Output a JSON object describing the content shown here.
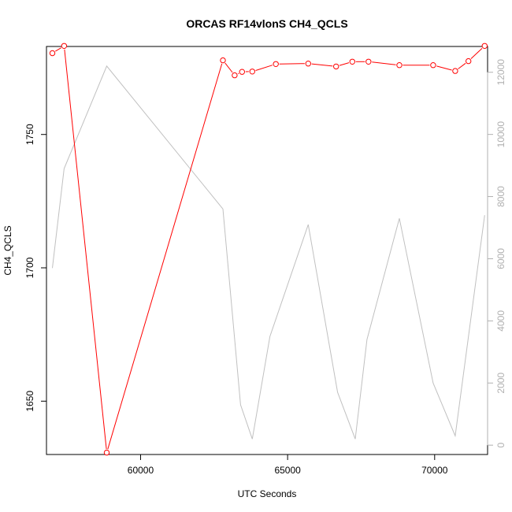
{
  "chart_data": {
    "type": "line",
    "title": "ORCAS RF14vlonS CH4_QCLS",
    "xlabel": "UTC Seconds",
    "ylabel": "CH4_QCLS",
    "xlim": [
      56800,
      71800
    ],
    "ylim": [
      1630,
      1783
    ],
    "y2lim": [
      0,
      12000
    ],
    "x_ticks": [
      60000,
      65000,
      70000
    ],
    "y_ticks": [
      1650,
      1700,
      1750
    ],
    "y2_ticks": [
      0,
      2000,
      4000,
      6000,
      8000,
      10000,
      12000
    ],
    "grid": false,
    "colors": {
      "primary": "#ff0000",
      "secondary": "#c0c0c0",
      "axis": "#000000",
      "axis2": "#b0b0b0"
    },
    "series": [
      {
        "axis": "left",
        "marker": "open-circle",
        "x": [
          57000,
          57400,
          58850,
          62800,
          63200,
          63450,
          63800,
          64600,
          65700,
          66650,
          67200,
          67750,
          68800,
          69950,
          70700,
          71150,
          71700
        ],
        "y": [
          1780.5,
          1783.2,
          1630.7,
          1777.8,
          1772.2,
          1773.5,
          1773.6,
          1776.4,
          1776.6,
          1775.5,
          1777.3,
          1777.3,
          1776.0,
          1776.0,
          1773.8,
          1777.5,
          1783.2
        ]
      },
      {
        "axis": "right",
        "marker": "none",
        "x": [
          57000,
          57400,
          58850,
          62800,
          63400,
          63800,
          64400,
          65700,
          66700,
          67300,
          67700,
          68800,
          69950,
          70700,
          71700
        ],
        "y": [
          5700,
          8900,
          12200,
          7600,
          1300,
          200,
          3500,
          7100,
          1700,
          200,
          3400,
          7300,
          2000,
          300,
          7400
        ]
      }
    ]
  }
}
